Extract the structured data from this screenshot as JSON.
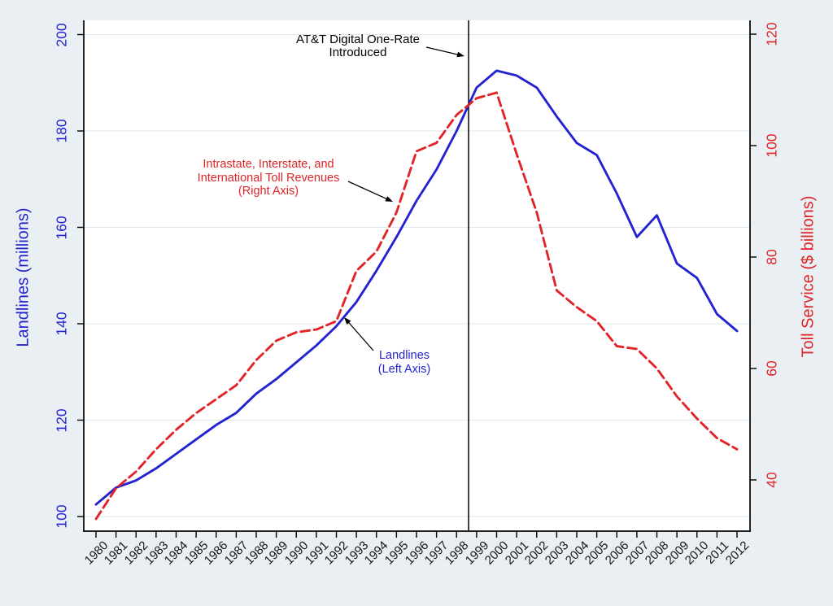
{
  "chart_data": {
    "type": "line",
    "x": [
      1980,
      1981,
      1982,
      1983,
      1984,
      1985,
      1986,
      1987,
      1988,
      1989,
      1990,
      1991,
      1992,
      1993,
      1994,
      1995,
      1996,
      1997,
      1998,
      1999,
      2000,
      2001,
      2002,
      2003,
      2004,
      2005,
      2006,
      2007,
      2008,
      2009,
      2010,
      2011,
      2012
    ],
    "series": [
      {
        "name": "Landlines",
        "axis": "left",
        "color": "#2323d1",
        "line_style": "solid",
        "values": [
          102.5,
          106,
          107.5,
          110,
          113,
          116,
          119,
          121.5,
          125.5,
          128.5,
          132,
          135.5,
          139.5,
          144.5,
          151,
          158,
          165.5,
          172,
          180,
          189,
          192.5,
          191.5,
          189,
          183,
          177.5,
          175,
          167,
          158,
          162.5,
          152.5,
          149.5,
          142,
          138.5
        ]
      },
      {
        "name": "Intrastate, Interstate, and International Toll Revenues",
        "axis": "right",
        "color": "#e02528",
        "line_style": "dashed",
        "values": [
          33,
          38.5,
          41.5,
          45.5,
          49,
          52,
          54.5,
          57,
          61.5,
          65,
          66.5,
          67,
          68.5,
          77.5,
          81,
          88,
          99,
          100.5,
          105.5,
          108.5,
          109.5,
          98.5,
          88,
          74,
          71,
          68.5,
          64,
          63.5,
          60,
          55,
          51,
          47.5,
          45.5
        ]
      }
    ],
    "left_axis": {
      "label": "Landlines (millions)",
      "ticks": [
        100,
        120,
        140,
        160,
        180,
        200
      ],
      "range": [
        97,
        203
      ],
      "color": "#2323d1"
    },
    "right_axis": {
      "label": "Toll Service ($ billions)",
      "ticks": [
        40,
        60,
        80,
        100,
        120
      ],
      "range": [
        31,
        122.5
      ],
      "color": "#e02528"
    },
    "x_axis": {
      "tick_angle": 45,
      "color": "#141414"
    },
    "reference_line": {
      "year": 1998.6,
      "color": "#000000"
    },
    "grid": true,
    "legend_position": "none",
    "background": "#e9eff2",
    "plot_background": "#ffffff",
    "gridline_color": "#dde8ee",
    "annotations": {
      "att_one_rate": {
        "lines": [
          "AT&T Digital One-Rate",
          "Introduced"
        ],
        "color": "#000000"
      },
      "toll_revenues": {
        "lines": [
          "Intrastate, Interstate, and",
          "International Toll Revenues",
          "(Right Axis)"
        ],
        "color": "#e02528"
      },
      "landlines": {
        "lines": [
          "Landlines",
          "(Left Axis)"
        ],
        "color": "#2323d1"
      }
    }
  }
}
